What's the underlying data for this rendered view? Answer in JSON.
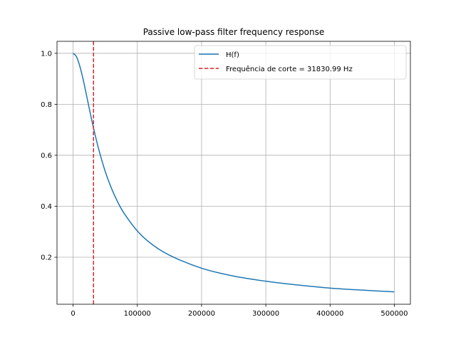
{
  "chart_data": {
    "type": "line",
    "title": "Passive low-pass filter frequency response",
    "xlabel": "",
    "ylabel": "",
    "xlim": [
      -25000,
      525000
    ],
    "ylim": [
      0.0156,
      1.047
    ],
    "xticks": [
      0,
      100000,
      200000,
      300000,
      400000,
      500000
    ],
    "xtick_labels": [
      "0",
      "100000",
      "200000",
      "300000",
      "400000",
      "500000"
    ],
    "yticks": [
      0.2,
      0.4,
      0.6,
      0.8,
      1.0
    ],
    "ytick_labels": [
      "0.2",
      "0.4",
      "0.6",
      "0.8",
      "1.0"
    ],
    "grid": true,
    "legend_position": "top-right",
    "series": [
      {
        "name": "H(f)",
        "color": "#1f77b4",
        "style": "solid",
        "x": [
          0,
          5000,
          10000,
          15000,
          20000,
          25000,
          31831,
          40000,
          50000,
          60000,
          70000,
          80000,
          100000,
          120000,
          150000,
          200000,
          250000,
          300000,
          350000,
          400000,
          450000,
          500000
        ],
        "y": [
          1.0,
          0.988,
          0.954,
          0.905,
          0.847,
          0.786,
          0.707,
          0.623,
          0.537,
          0.469,
          0.414,
          0.37,
          0.303,
          0.256,
          0.208,
          0.157,
          0.126,
          0.106,
          0.091,
          0.079,
          0.071,
          0.064
        ]
      }
    ],
    "vlines": [
      {
        "name": "Frequência de corte = 31830.99 Hz",
        "x": 31830.99,
        "color": "#d62728",
        "style": "dashed"
      }
    ]
  }
}
